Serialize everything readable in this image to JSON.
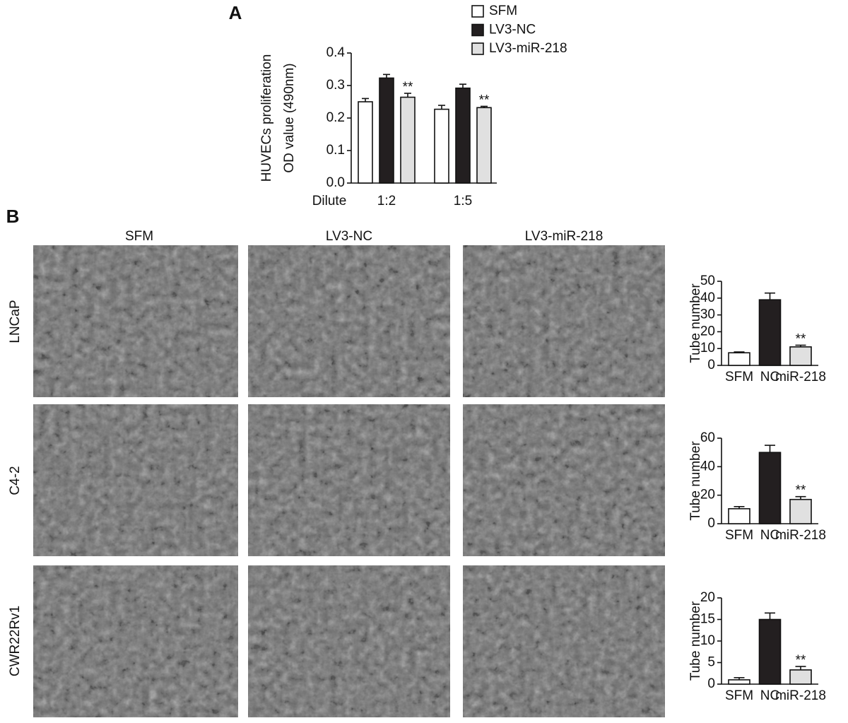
{
  "panel_labels": [
    "A",
    "B"
  ],
  "columns": [
    "SFM",
    "LV3-NC",
    "LV3-miR-218"
  ],
  "rows": [
    "LNCaP",
    "C4-2",
    "CWR22Rv1"
  ],
  "chart_data": [
    {
      "type": "bar",
      "ylabel": [
        "HUVECs proliferation",
        "OD value (490nm)"
      ],
      "xlabel": "Dilute",
      "categories": [
        "1:2",
        "1:5"
      ],
      "series": [
        {
          "name": "SFM",
          "color": "#ffffff",
          "values": [
            0.25,
            0.227
          ],
          "errors": [
            0.01,
            0.012
          ]
        },
        {
          "name": "LV3-NC",
          "color": "#231f20",
          "values": [
            0.323,
            0.292
          ],
          "errors": [
            0.011,
            0.012
          ]
        },
        {
          "name": "LV3-miR-218",
          "color": "#e0e0e0",
          "values": [
            0.264,
            0.232
          ],
          "errors": [
            0.012,
            0.004
          ],
          "annotations": [
            "**",
            "**"
          ]
        }
      ],
      "ylim": [
        0,
        0.4
      ],
      "yticks": [
        {
          "value": 0,
          "label": "0.0"
        },
        0.1,
        0.2,
        0.3,
        0.4
      ],
      "legend": "upper right"
    },
    {
      "type": "bar",
      "ylabel": [
        "Tube number"
      ],
      "categories": [
        "SFM",
        "NC",
        "miR-218"
      ],
      "values": [
        7.5,
        39,
        11
      ],
      "errors": [
        0.5,
        4,
        1
      ],
      "colors": [
        "#ffffff",
        "#231f20",
        "#e0e0e0"
      ],
      "annotations": [
        null,
        null,
        "**"
      ],
      "ylim": [
        0,
        50
      ],
      "yticks": [
        0,
        10,
        20,
        30,
        40,
        50
      ]
    },
    {
      "type": "bar",
      "ylabel": [
        "Tube number"
      ],
      "categories": [
        "SFM",
        "NC",
        "miR-218"
      ],
      "values": [
        10.5,
        50,
        17
      ],
      "errors": [
        1.5,
        5,
        2
      ],
      "colors": [
        "#ffffff",
        "#231f20",
        "#e0e0e0"
      ],
      "annotations": [
        null,
        null,
        "**"
      ],
      "ylim": [
        0,
        60
      ],
      "yticks": [
        0,
        20,
        40,
        60
      ]
    },
    {
      "type": "bar",
      "ylabel": [
        "Tube number"
      ],
      "categories": [
        "SFM",
        "NC",
        "miR-218"
      ],
      "values": [
        1,
        15,
        3.3
      ],
      "errors": [
        0.5,
        1.5,
        0.8
      ],
      "colors": [
        "#ffffff",
        "#231f20",
        "#e0e0e0"
      ],
      "annotations": [
        null,
        null,
        "**"
      ],
      "ylim": [
        0,
        20
      ],
      "yticks": [
        0,
        5,
        10,
        15,
        20
      ]
    }
  ]
}
